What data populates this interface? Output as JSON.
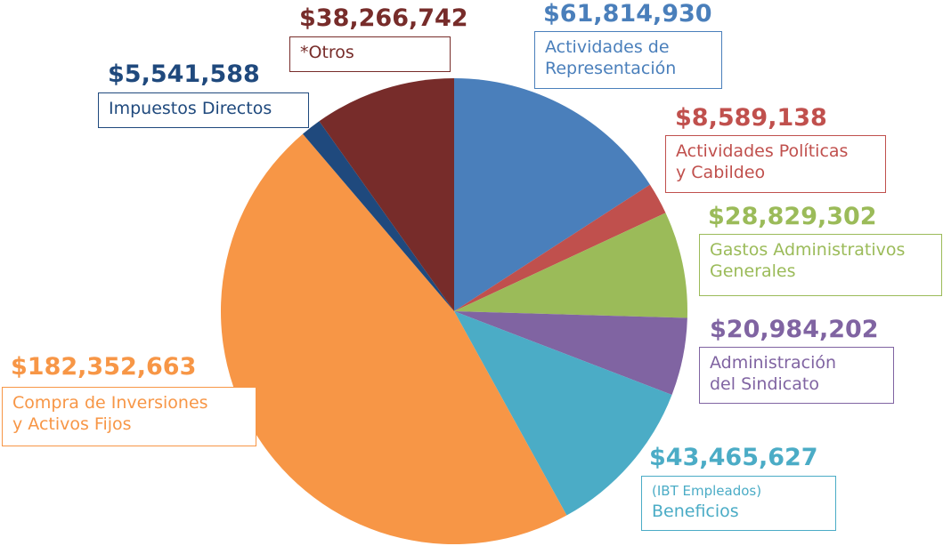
{
  "chart_data": {
    "type": "pie",
    "title": "",
    "start_angle_deg": 0,
    "direction": "clockwise",
    "slices": [
      {
        "id": "representacion",
        "value": 61814930,
        "value_label": "$61,814,930",
        "label_lines": [
          "Actividades de",
          "Representación"
        ],
        "color": "#4a7fbb"
      },
      {
        "id": "politicas",
        "value": 8589138,
        "value_label": "$8,589,138",
        "label_lines": [
          "Actividades Políticas",
          "y Cabildeo"
        ],
        "color": "#c0504d"
      },
      {
        "id": "gastos",
        "value": 28829302,
        "value_label": "$28,829,302",
        "label_lines": [
          "Gastos Administrativos",
          "Generales"
        ],
        "color": "#9bbb59"
      },
      {
        "id": "sindicato",
        "value": 20984202,
        "value_label": "$20,984,202",
        "label_lines": [
          "Administración",
          "del Sindicato"
        ],
        "color": "#8064a2"
      },
      {
        "id": "beneficios",
        "value": 43465627,
        "value_label": "$43,465,627",
        "label_lines": [
          "(IBT Empleados)",
          "Beneficios"
        ],
        "color": "#4bacc6"
      },
      {
        "id": "compra",
        "value": 182352663,
        "value_label": "$182,352,663",
        "label_lines": [
          "Compra de Inversiones",
          "y Activos Fijos"
        ],
        "color": "#f79646"
      },
      {
        "id": "impuestos",
        "value": 5541588,
        "value_label": "$5,541,588",
        "label_lines": [
          "Impuestos Directos"
        ],
        "color": "#1f497d"
      },
      {
        "id": "otros",
        "value": 38266742,
        "value_label": "$38,266,742",
        "label_lines": [
          "*Otros"
        ],
        "color": "#772c2a"
      }
    ]
  }
}
